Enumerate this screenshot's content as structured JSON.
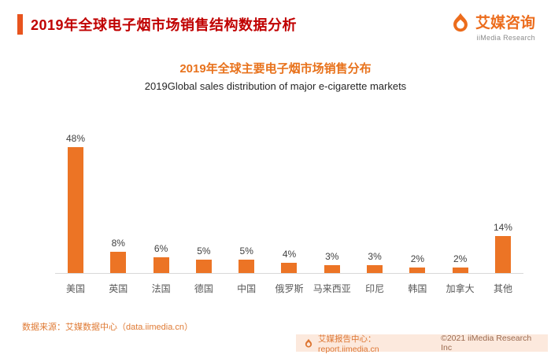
{
  "header": {
    "title": "2019年全球电子烟市场销售结构数据分析"
  },
  "brand": {
    "name": "艾媒咨询",
    "subname": "iiMedia Research"
  },
  "chart_data": {
    "type": "bar",
    "title": "2019年全球主要电子烟市场销售分布",
    "subtitle": "2019Global sales distribution of major e-cigarette markets",
    "categories": [
      "美国",
      "英国",
      "法国",
      "德国",
      "中国",
      "俄罗斯",
      "马来西亚",
      "印尼",
      "韩国",
      "加拿大",
      "其他"
    ],
    "values": [
      48,
      8,
      6,
      5,
      5,
      4,
      3,
      3,
      2,
      2,
      14
    ],
    "unit": "%",
    "ylim": [
      0,
      50
    ],
    "grid": false,
    "legend": "none",
    "bar_color": "#ec7425"
  },
  "source": "数据来源：艾媒数据中心（data.iimedia.cn）",
  "footer": {
    "link_text": "艾媒报告中心：report.iimedia.cn",
    "copyright": "©2021  iiMedia Research  Inc"
  },
  "colors": {
    "accent_bar": "#e8541e",
    "title_red": "#c00000",
    "brand_orange": "#ec6c1c",
    "chart_title_orange": "#e8721c",
    "bar_orange": "#ec7425",
    "footer_bg": "#fce9dd"
  }
}
